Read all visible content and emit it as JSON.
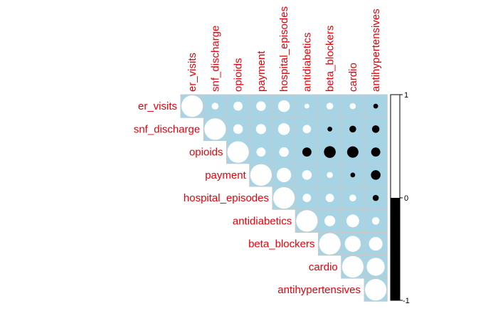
{
  "chart_data": {
    "type": "heatmap",
    "style": "correlation-matrix-upper-circles",
    "title": "",
    "xlabel": "",
    "ylabel": "",
    "variables": [
      "er_visits",
      "snf_discharge",
      "opioids",
      "payment",
      "hospital_episodes",
      "antidiabetics",
      "beta_blockers",
      "cardio",
      "antihypertensives"
    ],
    "matrix": [
      [
        1.0,
        0.1,
        0.18,
        0.2,
        0.3,
        0.05,
        0.1,
        0.08,
        -0.05
      ],
      [
        0.1,
        1.0,
        0.2,
        0.22,
        0.3,
        0.15,
        -0.05,
        -0.1,
        -0.12
      ],
      [
        0.18,
        0.2,
        1.0,
        0.18,
        0.2,
        -0.18,
        -0.3,
        -0.28,
        -0.18
      ],
      [
        0.2,
        0.22,
        0.18,
        1.0,
        0.45,
        0.2,
        0.08,
        -0.05,
        -0.2
      ],
      [
        0.3,
        0.3,
        0.2,
        0.45,
        1.0,
        0.15,
        0.15,
        0.1,
        -0.08
      ],
      [
        0.05,
        0.15,
        -0.18,
        0.2,
        0.15,
        1.0,
        0.25,
        0.35,
        0.12
      ],
      [
        0.1,
        -0.05,
        -0.3,
        0.08,
        0.15,
        0.25,
        1.0,
        0.55,
        0.4
      ],
      [
        0.08,
        -0.1,
        -0.28,
        -0.05,
        0.1,
        0.35,
        0.55,
        1.0,
        0.7
      ],
      [
        -0.05,
        -0.12,
        -0.18,
        -0.2,
        -0.08,
        0.12,
        0.4,
        0.7,
        1.0
      ]
    ],
    "colorbar": {
      "range": [
        -1,
        1
      ],
      "tick_labels": [
        "1",
        "0",
        "-1"
      ],
      "positive_color": "#ffffff",
      "negative_color": "#000000"
    },
    "colors": {
      "cell_background": "#a6d4e4",
      "grid": "#c8c8c8",
      "label": "#e8000b",
      "outline": "#000000"
    }
  }
}
